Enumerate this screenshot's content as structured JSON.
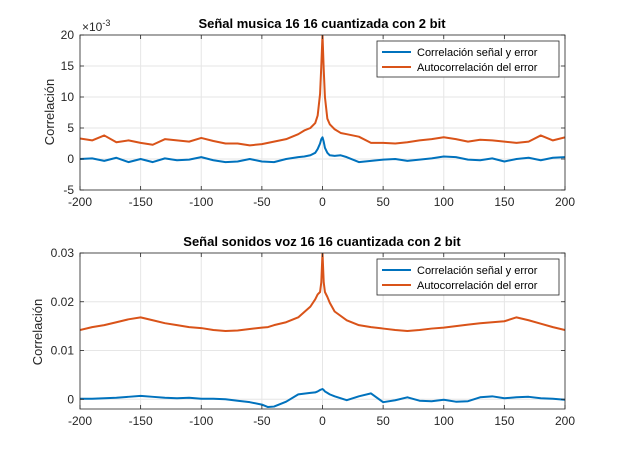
{
  "chart_data": [
    {
      "type": "line",
      "title": "Señal musica 16 16 cuantizada con 2 bit",
      "ylabel": "Correlación",
      "y_multiplier_label": "×10",
      "y_multiplier_exp": "-3",
      "xlim": [
        -200,
        200
      ],
      "ylim": [
        -5,
        20
      ],
      "xticks": [
        -200,
        -150,
        -100,
        -50,
        0,
        50,
        100,
        150,
        200
      ],
      "xtick_labels": [
        "-200",
        "-150",
        "-100",
        "-50",
        "0",
        "50",
        "100",
        "150",
        "200"
      ],
      "yticks": [
        -5,
        0,
        5,
        10,
        15,
        20
      ],
      "ytick_labels": [
        "-5",
        "0",
        "5",
        "10",
        "15",
        "20"
      ],
      "grid": true,
      "legend_position": "top-right",
      "x": [
        -200,
        -190,
        -180,
        -170,
        -160,
        -150,
        -140,
        -130,
        -120,
        -110,
        -100,
        -90,
        -80,
        -70,
        -60,
        -50,
        -40,
        -30,
        -20,
        -15,
        -10,
        -6,
        -4,
        -2,
        -1,
        0,
        1,
        2,
        4,
        6,
        10,
        15,
        20,
        30,
        40,
        50,
        60,
        70,
        80,
        90,
        100,
        110,
        120,
        130,
        140,
        150,
        160,
        170,
        180,
        190,
        200
      ],
      "series": [
        {
          "name": "Correlación señal y error",
          "color": "#0072BD",
          "values": [
            0.0,
            0.1,
            -0.3,
            0.2,
            -0.5,
            0.0,
            -0.5,
            0.1,
            -0.2,
            -0.1,
            0.3,
            -0.2,
            -0.5,
            -0.4,
            0.0,
            -0.4,
            -0.5,
            0.0,
            0.3,
            0.4,
            0.6,
            1.0,
            1.6,
            2.5,
            3.2,
            3.5,
            2.8,
            1.8,
            1.0,
            0.6,
            0.5,
            0.6,
            0.3,
            -0.5,
            -0.3,
            -0.1,
            0.0,
            -0.3,
            -0.1,
            0.1,
            0.4,
            0.3,
            -0.1,
            -0.2,
            0.1,
            -0.4,
            0.0,
            0.2,
            -0.2,
            0.2,
            0.3
          ]
        },
        {
          "name": "Autocorrelación del error",
          "color": "#D95319",
          "values": [
            3.3,
            3.0,
            3.8,
            2.7,
            3.0,
            2.6,
            2.3,
            3.2,
            3.0,
            2.8,
            3.4,
            2.9,
            2.5,
            2.5,
            2.2,
            2.4,
            2.8,
            3.2,
            4.0,
            4.6,
            5.0,
            5.8,
            7.0,
            10.5,
            15.0,
            20.0,
            14.5,
            10.0,
            6.5,
            5.6,
            4.8,
            4.2,
            4.0,
            3.6,
            2.6,
            2.6,
            2.5,
            2.7,
            3.0,
            3.2,
            3.5,
            3.2,
            2.8,
            3.1,
            3.0,
            2.8,
            2.6,
            2.8,
            3.8,
            3.0,
            3.5
          ]
        }
      ]
    },
    {
      "type": "line",
      "title": "Señal sonidos voz 16 16 cuantizada con 2 bit",
      "ylabel": "Correlación",
      "xlim": [
        -200,
        200
      ],
      "ylim": [
        -0.002,
        0.03
      ],
      "xticks": [
        -200,
        -150,
        -100,
        -50,
        0,
        50,
        100,
        150,
        200
      ],
      "xtick_labels": [
        "-200",
        "-150",
        "-100",
        "-50",
        "0",
        "50",
        "100",
        "150",
        "200"
      ],
      "yticks": [
        0,
        0.01,
        0.02,
        0.03
      ],
      "ytick_labels": [
        "0",
        "0.01",
        "0.02",
        "0.03"
      ],
      "grid": true,
      "legend_position": "top-right",
      "x": [
        -200,
        -190,
        -180,
        -170,
        -160,
        -150,
        -140,
        -130,
        -120,
        -110,
        -100,
        -90,
        -80,
        -70,
        -60,
        -50,
        -45,
        -40,
        -30,
        -20,
        -10,
        -6,
        -4,
        -2,
        -1,
        0,
        1,
        2,
        4,
        6,
        10,
        20,
        30,
        40,
        50,
        60,
        70,
        80,
        90,
        100,
        110,
        120,
        130,
        140,
        150,
        160,
        170,
        180,
        190,
        200
      ],
      "series": [
        {
          "name": "Correlación señal y error",
          "color": "#0072BD",
          "values": [
            0.0001,
            0.0001,
            0.0002,
            0.0003,
            0.0005,
            0.0007,
            0.0005,
            0.0003,
            0.0002,
            0.0003,
            0.0001,
            0.0001,
            0.0,
            -0.0003,
            -0.0006,
            -0.0011,
            -0.0016,
            -0.0015,
            -0.0005,
            0.001,
            0.0013,
            0.0014,
            0.0016,
            0.0019,
            0.002,
            0.0021,
            0.0019,
            0.0016,
            0.0013,
            0.001,
            0.0006,
            -0.0002,
            0.0006,
            0.0012,
            -0.0006,
            -0.0002,
            0.0004,
            -0.0003,
            -0.0004,
            -0.0001,
            -0.0005,
            -0.0004,
            0.0004,
            0.0006,
            0.0002,
            0.0004,
            0.0005,
            0.0002,
            0.0001,
            -0.0001
          ]
        },
        {
          "name": "Autocorrelación del error",
          "color": "#D95319",
          "values": [
            0.0142,
            0.0148,
            0.0152,
            0.0158,
            0.0164,
            0.0168,
            0.0162,
            0.0156,
            0.0152,
            0.0148,
            0.0146,
            0.0142,
            0.014,
            0.0141,
            0.0144,
            0.0147,
            0.0148,
            0.0152,
            0.0158,
            0.0168,
            0.019,
            0.0205,
            0.0215,
            0.022,
            0.024,
            0.03,
            0.024,
            0.022,
            0.021,
            0.0198,
            0.018,
            0.0162,
            0.0152,
            0.0148,
            0.0145,
            0.0142,
            0.014,
            0.0142,
            0.0145,
            0.0147,
            0.015,
            0.0153,
            0.0156,
            0.0158,
            0.016,
            0.0168,
            0.0162,
            0.0155,
            0.0148,
            0.0142
          ]
        }
      ]
    }
  ]
}
